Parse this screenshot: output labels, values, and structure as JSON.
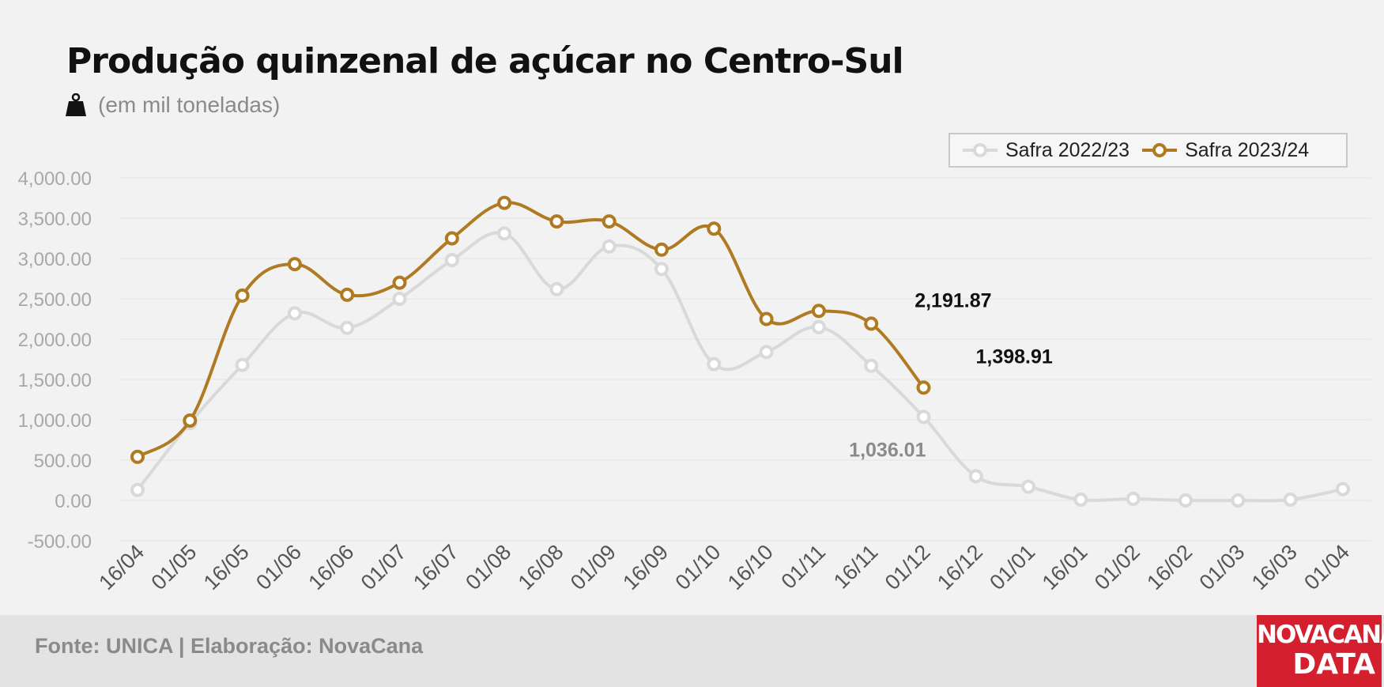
{
  "title": "Produção quinzenal de açúcar no Centro-Sul",
  "subtitle": "(em mil toneladas)",
  "subtitle_icon": "weight-icon",
  "source": "Fonte: UNICA | Elaboração: NovaCana",
  "logo": {
    "line1": "NOVACANA",
    "line2": "DATA"
  },
  "colors": {
    "series_2022": "#d9d9d9",
    "series_2023": "#b07a22",
    "logo_bg": "#d4202e",
    "footer_bg": "#e3e3e3"
  },
  "chart_data": {
    "type": "line",
    "x": [
      "16/04",
      "01/05",
      "16/05",
      "01/06",
      "16/06",
      "01/07",
      "16/07",
      "01/08",
      "16/08",
      "01/09",
      "16/09",
      "01/10",
      "16/10",
      "01/11",
      "16/11",
      "01/12",
      "16/12",
      "01/01",
      "16/01",
      "01/02",
      "16/02",
      "01/03",
      "16/03",
      "01/04"
    ],
    "ylim": [
      -500,
      4000
    ],
    "yticks": [
      "4,000.00",
      "3,500.00",
      "3,000.00",
      "2,500.00",
      "2,000.00",
      "1,500.00",
      "1,000.00",
      "500.00",
      "0.00",
      "-500.00"
    ],
    "ytick_values": [
      4000,
      3500,
      3000,
      2500,
      2000,
      1500,
      1000,
      500,
      0,
      -500
    ],
    "grid": true,
    "legend_position": "top-right",
    "series": [
      {
        "name": "Safra 2022/23",
        "color": "#d9d9d9",
        "values": [
          130,
          960,
          1680,
          2320,
          2140,
          2500,
          2980,
          3310,
          2620,
          3150,
          2870,
          1690,
          1840,
          2150,
          1670,
          1036.01,
          300,
          170,
          10,
          20,
          0,
          0,
          10,
          140
        ]
      },
      {
        "name": "Safra 2023/24",
        "color": "#b07a22",
        "values": [
          540,
          990,
          2540,
          2930,
          2550,
          2700,
          3250,
          3690,
          3460,
          3460,
          3110,
          3370,
          2250,
          2350,
          2191.87,
          1398.91,
          null,
          null,
          null,
          null,
          null,
          null,
          null,
          null
        ]
      }
    ],
    "annotations": [
      {
        "text": "2,191.87",
        "series": 1,
        "index": 14
      },
      {
        "text": "1,398.91",
        "series": 1,
        "index": 15
      },
      {
        "text": "1,036.01",
        "series": 0,
        "index": 15
      }
    ]
  }
}
